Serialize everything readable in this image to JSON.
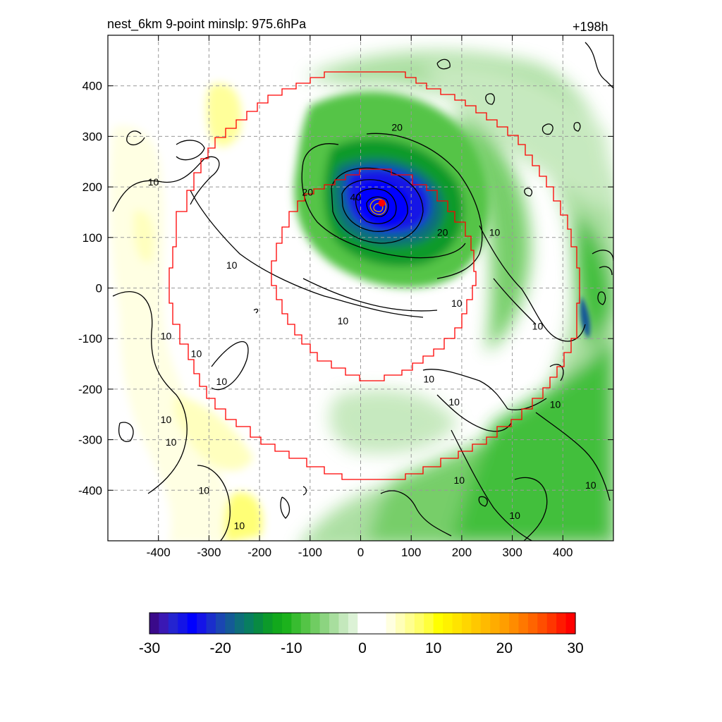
{
  "header": {
    "title": "nest_6km  9-point minslp: 975.6hPa",
    "forecast_hour": "+198h"
  },
  "chart_data": {
    "type": "heatmap",
    "xlim": [
      -500,
      500
    ],
    "ylim": [
      -500,
      500
    ],
    "x_ticks": [
      -400,
      -300,
      -200,
      -100,
      0,
      100,
      200,
      300,
      400
    ],
    "y_ticks": [
      400,
      300,
      200,
      100,
      0,
      -100,
      -200,
      -300,
      -400
    ],
    "grid": true,
    "grid_style": "dashed",
    "storm_center": {
      "x": 42,
      "y": 168,
      "color": "#ff0000"
    },
    "contour_labels": [
      {
        "text": "10",
        "x": -410,
        "y": 210
      },
      {
        "text": "10",
        "x": -255,
        "y": 45
      },
      {
        "text": "10",
        "x": -385,
        "y": -95
      },
      {
        "text": "10",
        "x": -325,
        "y": -130
      },
      {
        "text": "10",
        "x": -275,
        "y": -185
      },
      {
        "text": "10",
        "x": -385,
        "y": -260
      },
      {
        "text": "10",
        "x": -375,
        "y": -305
      },
      {
        "text": "10",
        "x": -310,
        "y": -400
      },
      {
        "text": "10",
        "x": -240,
        "y": -470
      },
      {
        "text": "10",
        "x": -35,
        "y": -65
      },
      {
        "text": "10",
        "x": 190,
        "y": -30
      },
      {
        "text": "10",
        "x": 265,
        "y": 110
      },
      {
        "text": "10",
        "x": 350,
        "y": -75
      },
      {
        "text": "10",
        "x": 135,
        "y": -180
      },
      {
        "text": "10",
        "x": 185,
        "y": -225
      },
      {
        "text": "10",
        "x": 385,
        "y": -230
      },
      {
        "text": "10",
        "x": 195,
        "y": -380
      },
      {
        "text": "10",
        "x": 305,
        "y": -450
      },
      {
        "text": "10",
        "x": 455,
        "y": -390
      },
      {
        "text": "20",
        "x": 72,
        "y": 318
      },
      {
        "text": "20",
        "x": -105,
        "y": 190
      },
      {
        "text": "20",
        "x": 162,
        "y": 110
      },
      {
        "text": "40",
        "x": -10,
        "y": 180
      }
    ],
    "colorbar": {
      "ticks": [
        -30,
        -20,
        -10,
        0,
        10,
        20,
        30
      ],
      "colors": [
        "#3a0a8a",
        "#3a18b4",
        "#2424d0",
        "#1414e6",
        "#0000ff",
        "#1414e8",
        "#1a2ecc",
        "#1a46b2",
        "#145a96",
        "#0e6e7a",
        "#087e60",
        "#088a42",
        "#0c9a2a",
        "#12a81c",
        "#1cb21c",
        "#38bc30",
        "#54c446",
        "#70cc62",
        "#8cd480",
        "#a8de9e",
        "#c4e8bc",
        "#dcf2d6",
        "#ffffff",
        "#ffffff",
        "#ffffff",
        "#ffffe0",
        "#ffffb8",
        "#ffff90",
        "#ffff68",
        "#ffff3c",
        "#ffff00",
        "#fff200",
        "#ffe400",
        "#ffd600",
        "#ffc800",
        "#ffba00",
        "#ffac00",
        "#ff9e00",
        "#ff8c00",
        "#ff7800",
        "#ff6400",
        "#ff4e00",
        "#ff3600",
        "#ff1a00",
        "#ff0000"
      ]
    }
  }
}
